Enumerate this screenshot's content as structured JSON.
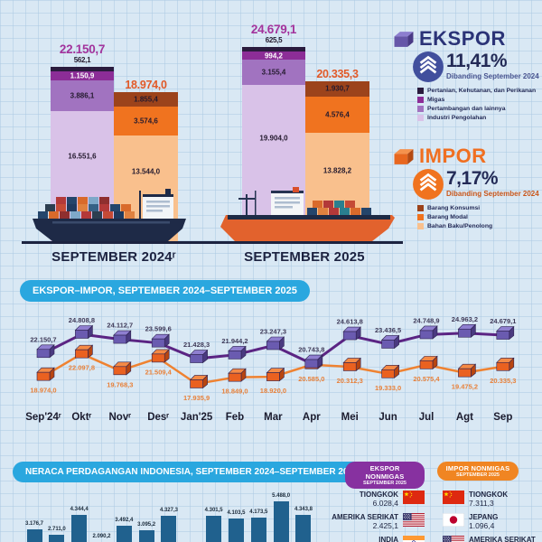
{
  "colors": {
    "background": "#d9e8f4",
    "grid_line": "#adcbe4",
    "header_pill_blue": "#2aa7df",
    "ekspor_accent": "#2b3377",
    "ekspor_total_text": "#a2339c",
    "impor_accent": "#f06f21",
    "impor_total_text": "#e25a28",
    "ekspor_segments": [
      "#2a1b3d",
      "#8c2d97",
      "#a173c0",
      "#d9c2e8"
    ],
    "impor_segments": [
      "#9c431b",
      "#f0731f",
      "#f9c08d"
    ],
    "ekspor_line": "#5b2483",
    "ekspor_cube": [
      "#6a5bb0",
      "#8f7fd0",
      "#4a3a80"
    ],
    "impor_line": "#ef8231",
    "impor_cube": [
      "#ea6120",
      "#f58a45",
      "#b84510"
    ],
    "ekspor_point_label": "#3f3a58",
    "impor_point_label": "#e8813a",
    "balance_bar": "#20618e",
    "nonmigas_ekspor_pill": "#8731a0",
    "nonmigas_impor_pill": "#f08522",
    "baseline": "#1c2340",
    "ekspor_circle": "#414f9d",
    "impor_circle": "#f0731f"
  },
  "ekspor_panel": {
    "title": "EKSPOR",
    "pct": "11,41%",
    "compare": "Dibanding September 2024",
    "legend": [
      "Pertanian, Kehutanan, dan Perikanan",
      "Migas",
      "Pertambangan dan lainnya",
      "Industri Pengolahan"
    ]
  },
  "impor_panel": {
    "title": "IMPOR",
    "pct": "7,17%",
    "compare": "Dibanding September 2024",
    "legend": [
      "Barang Konsumsi",
      "Barang Modal",
      "Bahan Baku/Penolong"
    ]
  },
  "line_section": {
    "header": "EKSPOR–IMPOR, SEPTEMBER 2024–SEPTEMBER 2025"
  },
  "balance_section": {
    "header": "NERACA PERDAGANGAN INDONESIA, SEPTEMBER 2024–SEPTEMBER 2025"
  },
  "nonmigas": {
    "ekspor": {
      "header": "EKSPOR NONMIGAS",
      "sub": "SEPTEMBER 2025",
      "rows": [
        {
          "country": "TIONGKOK",
          "value": "6.028,4",
          "flag": "cn"
        },
        {
          "country": "AMERIKA SERIKAT",
          "value": "2.425,1",
          "flag": "us"
        },
        {
          "country": "INDIA",
          "value": "",
          "flag": "in"
        }
      ]
    },
    "impor": {
      "header": "IMPOR NONMIGAS",
      "sub": "SEPTEMBER 2025",
      "rows": [
        {
          "country": "TIONGKOK",
          "value": "7.311,3",
          "flag": "cn"
        },
        {
          "country": "JEPANG",
          "value": "1.096,4",
          "flag": "jp"
        },
        {
          "country": "AMERIKA SERIKAT",
          "value": "",
          "flag": "us"
        }
      ]
    }
  },
  "chart_data": [
    {
      "type": "bar",
      "stacked": true,
      "groups": [
        {
          "label": "SEPTEMBER 2024ʳ",
          "ekspor": {
            "total": 22150.7,
            "total_label": "22.150,7",
            "segments": [
              {
                "name": "Pertanian, Kehutanan, dan Perikanan",
                "value": 562.1,
                "label": "562,1"
              },
              {
                "name": "Migas",
                "value": 1150.9,
                "label": "1.150,9"
              },
              {
                "name": "Pertambangan dan lainnya",
                "value": 3886.1,
                "label": "3.886,1"
              },
              {
                "name": "Industri Pengolahan",
                "value": 16551.6,
                "label": "16.551,6"
              }
            ]
          },
          "impor": {
            "total": 18974.0,
            "total_label": "18.974,0",
            "segments": [
              {
                "name": "Barang Konsumsi",
                "value": 1855.4,
                "label": "1.855,4"
              },
              {
                "name": "Barang Modal",
                "value": 3574.6,
                "label": "3.574,6"
              },
              {
                "name": "Bahan Baku/Penolong",
                "value": 13544.0,
                "label": "13.544,0"
              }
            ]
          }
        },
        {
          "label": "SEPTEMBER 2025",
          "ekspor": {
            "total": 24679.1,
            "total_label": "24.679,1",
            "segments": [
              {
                "name": "Pertanian, Kehutanan, dan Perikanan",
                "value": 625.5,
                "label": "625,5"
              },
              {
                "name": "Migas",
                "value": 994.2,
                "label": "994,2"
              },
              {
                "name": "Pertambangan dan lainnya",
                "value": 3155.4,
                "label": "3.155,4"
              },
              {
                "name": "Industri Pengolahan",
                "value": 19904.0,
                "label": "19.904,0"
              }
            ]
          },
          "impor": {
            "total": 20335.3,
            "total_label": "20.335,3",
            "segments": [
              {
                "name": "Barang Konsumsi",
                "value": 1930.7,
                "label": "1.930,7"
              },
              {
                "name": "Barang Modal",
                "value": 4576.4,
                "label": "4.576,4"
              },
              {
                "name": "Bahan Baku/Penolong",
                "value": 13828.2,
                "label": "13.828,2"
              }
            ]
          }
        }
      ]
    },
    {
      "type": "line",
      "title": "EKSPOR–IMPOR, SEPTEMBER 2024–SEPTEMBER 2025",
      "categories": [
        "Sep'24ʳ",
        "Oktʳ",
        "Novʳ",
        "Desʳ",
        "Jan'25",
        "Feb",
        "Mar",
        "Apr",
        "Mei",
        "Jun",
        "Jul",
        "Agt",
        "Sep"
      ],
      "series": [
        {
          "name": "Ekspor",
          "values": [
            22150.7,
            24808.8,
            24112.7,
            23599.6,
            21428.3,
            21944.2,
            23247.3,
            20743.8,
            24613.8,
            23436.5,
            24748.9,
            24963.2,
            24679.1
          ],
          "labels": [
            "22.150,7",
            "24.808,8",
            "24.112,7",
            "23.599,6",
            "21.428,3",
            "21.944,2",
            "23.247,3",
            "20.743,8",
            "24.613,8",
            "23.436,5",
            "24.748,9",
            "24.963,2",
            "24.679,1"
          ]
        },
        {
          "name": "Impor",
          "values": [
            18974.0,
            22097.8,
            19768.3,
            21509.4,
            17935.9,
            18849.0,
            18920.0,
            20585.0,
            20312.3,
            19333.0,
            20575.4,
            19475.2,
            20335.3
          ],
          "labels": [
            "18.974,0",
            "22.097,8",
            "19.768,3",
            "21.509,4",
            "17.935,9",
            "18.849,0",
            "18.920,0",
            "20.585,0",
            "20.312,3",
            "19.333,0",
            "20.575,4",
            "19.475,2",
            "20.335,3"
          ]
        }
      ],
      "legend_position": "none",
      "grid": true
    },
    {
      "type": "bar",
      "title": "NERACA PERDAGANGAN INDONESIA, SEPTEMBER 2024–SEPTEMBER 2025",
      "categories": [
        "Sep'24",
        "Okt",
        "Nov",
        "Des",
        "Jan'25",
        "Feb",
        "Mar",
        "Apr",
        "Mei",
        "Jun",
        "Jul",
        "Agt",
        "Sep"
      ],
      "values": [
        3176.7,
        2711.0,
        4344.4,
        2090.2,
        3492.4,
        3095.2,
        4327.3,
        158.8,
        4301.5,
        4103.5,
        4173.5,
        5488.0,
        4343.8
      ],
      "labels": [
        "3.176,7",
        "2.711,0",
        "4.344,4",
        "2.090,2",
        "3.492,4",
        "3.095,2",
        "4.327,3",
        "158,8",
        "4.301,5",
        "4.103,5",
        "4.173,5",
        "5.488,0",
        "4.343,8"
      ]
    }
  ]
}
